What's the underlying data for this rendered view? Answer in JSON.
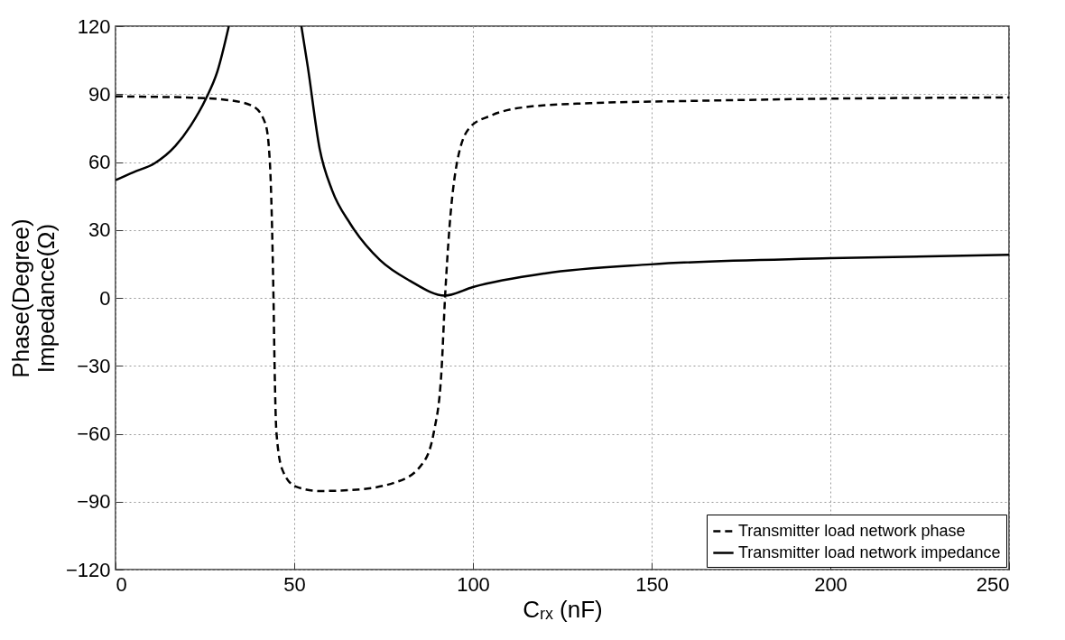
{
  "chart_data": {
    "type": "line",
    "xlabel": "Cᵣₓ (nF)",
    "ylabel": "Phase(Degree)\nImpedance(Ω)",
    "xlim": [
      0,
      250
    ],
    "xticks": [
      0,
      50,
      100,
      150,
      200,
      250
    ],
    "ylim": [
      -120,
      120
    ],
    "yticks": [
      -120,
      -90,
      -60,
      -30,
      0,
      30,
      60,
      90,
      120
    ],
    "grid": true,
    "legend": "bottom right",
    "series": [
      {
        "name": "Transmitter load network phase",
        "color": "#000000",
        "line_style": "dashed",
        "x": [
          0,
          10,
          20,
          31.8,
          38.6,
          42,
          43.2,
          44.2,
          44.5,
          45,
          46.7,
          50.5,
          57.1,
          65.6,
          78.3,
          85.8,
          89.1,
          91.2,
          92.2,
          93.4,
          95.5,
          99.2,
          105,
          116,
          132.8,
          162,
          200,
          250
        ],
        "values": [
          89,
          88.8,
          88.5,
          87.3,
          84.5,
          76.6,
          59.4,
          0,
          -29.6,
          -59,
          -76,
          -83.4,
          -85.3,
          -84.9,
          -81.5,
          -73.4,
          -59,
          -32.3,
          0.4,
          30.3,
          59.4,
          75.4,
          80.5,
          84.5,
          86,
          87,
          88,
          88.5
        ]
      },
      {
        "name": "Transmitter load network impedance",
        "color": "#000000",
        "line_style": "solid",
        "x": [
          0,
          5,
          10.9,
          16.7,
          21,
          25.3,
          28.5,
          31.7,
          42,
          52,
          53.8,
          57.1,
          60.6,
          65.7,
          74,
          82.3,
          92.2,
          100,
          120,
          149.7,
          200,
          250
        ],
        "values": [
          52,
          55.5,
          59.4,
          67,
          76,
          88,
          100,
          120,
          null,
          120,
          102,
          66,
          47.5,
          32.7,
          16.7,
          7.6,
          1,
          4.8,
          10.8,
          14.8,
          17.5,
          19
        ]
      }
    ]
  }
}
